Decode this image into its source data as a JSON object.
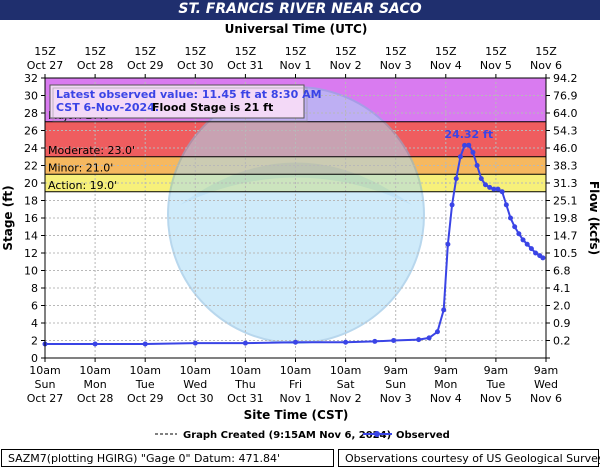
{
  "title": "ST. FRANCIS RIVER NEAR SACO",
  "top_axis_title": "Universal Time (UTC)",
  "bottom_axis_title": "Site Time (CST)",
  "left_axis_title": "Stage (ft)",
  "right_axis_title": "Flow (kcfs)",
  "info_box": {
    "line1": "Latest observed value: 11.45 ft at 8:30 AM",
    "line2_a": "CST 6-Nov-2024.",
    "line2_b": "Flood Stage is 21 ft"
  },
  "legend": {
    "created": "Graph Created (9:15AM Nov 6, 2024)",
    "observed": "Observed"
  },
  "footer": {
    "left": "SAZM7(plotting HGIRG) \"Gage 0\" Datum: 471.84'",
    "right": "Observations courtesy of US Geological Survey"
  },
  "colors": {
    "major": "#d97bf0",
    "moderate": "#ef5d5f",
    "minor": "#f6b85f",
    "action": "#f7f07a",
    "series": "#3a44e6",
    "header": "#1f2f6e"
  },
  "chart_data": {
    "type": "line",
    "title": "ST. FRANCIS RIVER NEAR SACO",
    "xlabel": "Site Time (CST)",
    "ylabel": "Stage (ft)",
    "y2label": "Flow (kcfs)",
    "ylim": [
      0,
      32
    ],
    "xlim": [
      "2024-10-27 10:00",
      "2024-11-06 10:00"
    ],
    "yticks": [
      0,
      2,
      4,
      6,
      8,
      10,
      12,
      14,
      16,
      18,
      20,
      22,
      24,
      26,
      28,
      30,
      32
    ],
    "flow_ticks": [
      "",
      "0.2",
      "0.9",
      "2.0",
      "4.1",
      "6.8",
      "10.5",
      "14.7",
      "19.8",
      "25.1",
      "31.3",
      "38.3",
      "46.0",
      "54.3",
      "64.0",
      "76.9",
      "94.2"
    ],
    "bottom_ticks": [
      [
        "10am",
        "Sun",
        "Oct 27"
      ],
      [
        "10am",
        "Mon",
        "Oct 28"
      ],
      [
        "10am",
        "Tue",
        "Oct 29"
      ],
      [
        "10am",
        "Wed",
        "Oct 30"
      ],
      [
        "10am",
        "Thu",
        "Oct 31"
      ],
      [
        "10am",
        "Fri",
        "Nov 1"
      ],
      [
        "10am",
        "Sat",
        "Nov 2"
      ],
      [
        "9am",
        "Sun",
        "Nov 3"
      ],
      [
        "9am",
        "Mon",
        "Nov 4"
      ],
      [
        "9am",
        "Tue",
        "Nov 5"
      ],
      [
        "9am",
        "Wed",
        "Nov 6"
      ]
    ],
    "top_ticks": [
      [
        "15Z",
        "Oct 27"
      ],
      [
        "15Z",
        "Oct 28"
      ],
      [
        "15Z",
        "Oct 29"
      ],
      [
        "15Z",
        "Oct 30"
      ],
      [
        "15Z",
        "Oct 31"
      ],
      [
        "15Z",
        "Nov 1"
      ],
      [
        "15Z",
        "Nov 2"
      ],
      [
        "15Z",
        "Nov 3"
      ],
      [
        "15Z",
        "Nov 4"
      ],
      [
        "15Z",
        "Nov 5"
      ],
      [
        "15Z",
        "Nov 6"
      ]
    ],
    "flood_categories": [
      {
        "name": "Major",
        "label": "Major: 27.0'",
        "from": 27,
        "to": 32
      },
      {
        "name": "Moderate",
        "label": "Moderate: 23.0'",
        "from": 23,
        "to": 27
      },
      {
        "name": "Minor",
        "label": "Minor: 21.0'",
        "from": 21,
        "to": 23
      },
      {
        "name": "Action",
        "label": "Action: 19.0'",
        "from": 19,
        "to": 21
      }
    ],
    "peak_label": "24.32 ft",
    "series": [
      {
        "name": "Observed",
        "x": [
          "2024-10-27 10:00",
          "2024-10-28 10:00",
          "2024-10-29 10:00",
          "2024-10-30 10:00",
          "2024-10-31 10:00",
          "2024-11-01 10:00",
          "2024-11-02 10:00",
          "2024-11-03 00:00",
          "2024-11-03 09:00",
          "2024-11-03 21:00",
          "2024-11-04 02:00",
          "2024-11-04 06:00",
          "2024-11-04 09:00",
          "2024-11-04 11:00",
          "2024-11-04 13:00",
          "2024-11-04 15:00",
          "2024-11-04 17:00",
          "2024-11-04 19:00",
          "2024-11-04 21:00",
          "2024-11-04 23:00",
          "2024-11-05 01:00",
          "2024-11-05 03:00",
          "2024-11-05 05:00",
          "2024-11-05 07:00",
          "2024-11-05 09:00",
          "2024-11-05 11:00",
          "2024-11-05 13:00",
          "2024-11-05 15:00",
          "2024-11-05 17:00",
          "2024-11-05 19:00",
          "2024-11-05 21:00",
          "2024-11-05 23:00",
          "2024-11-06 01:00",
          "2024-11-06 03:00",
          "2024-11-06 05:00",
          "2024-11-06 07:00",
          "2024-11-06 08:30"
        ],
        "values": [
          1.6,
          1.6,
          1.6,
          1.7,
          1.7,
          1.8,
          1.8,
          1.9,
          2.0,
          2.1,
          2.3,
          3.0,
          5.5,
          13.0,
          17.5,
          20.5,
          23.0,
          24.3,
          24.32,
          23.5,
          22.0,
          20.5,
          19.8,
          19.5,
          19.3,
          19.3,
          19.0,
          17.5,
          16.0,
          15.0,
          14.2,
          13.5,
          13.0,
          12.5,
          12.0,
          11.7,
          11.45
        ]
      }
    ]
  }
}
